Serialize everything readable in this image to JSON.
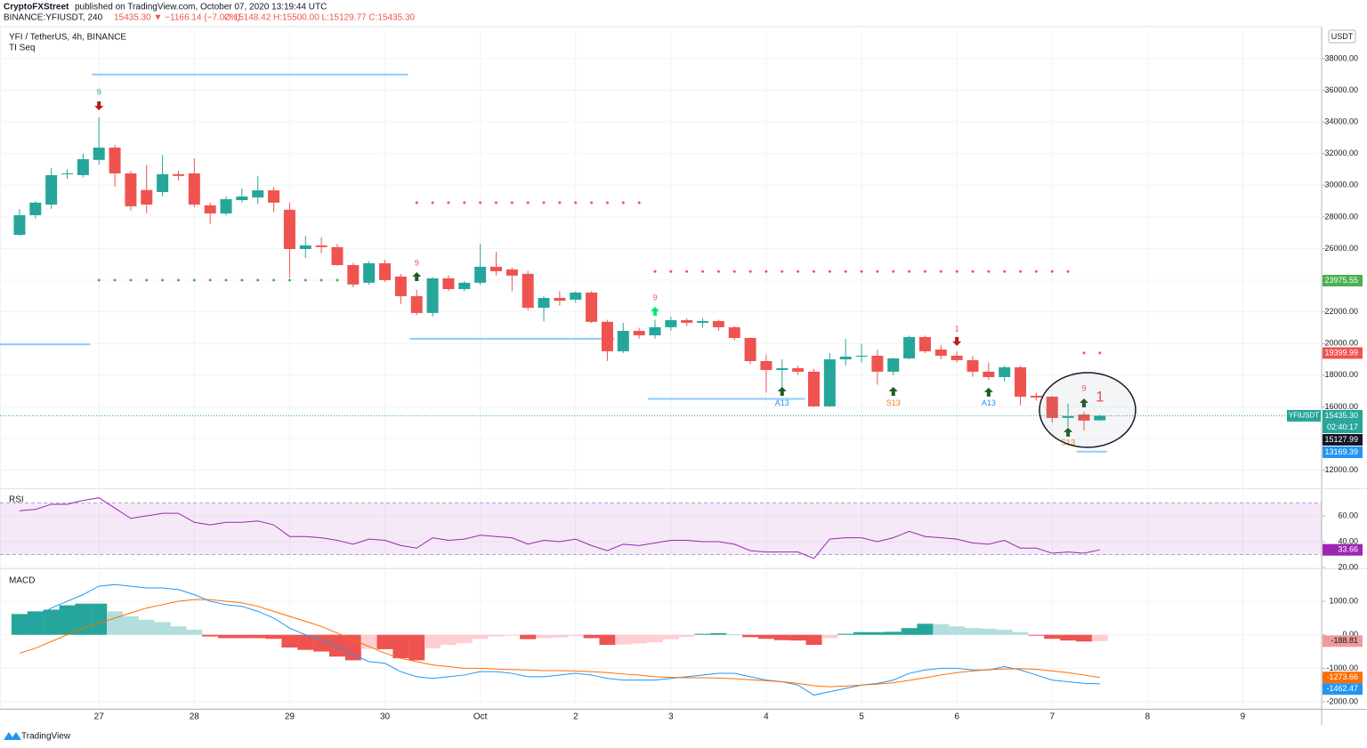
{
  "chart_data": [
    {
      "type": "candlestick",
      "author": "CryptoFXStreet",
      "published": "published on TradingView.com, October 07, 2020 13:19:44 UTC",
      "symbol": "BINANCE:YFIUSDT, 240",
      "change": "15435.30 ▼ −1166.14 (−7.02%)",
      "ohlc_text": "O:15148.42 H:15500.00 L:15129.77 C:15435.30",
      "title": "YFI / TetherUS, 4h, BINANCE",
      "indicator": "TI Seq",
      "currency": "USDT",
      "footer": "TradingView",
      "up_color": "#26a69a",
      "down_color": "#ef5350",
      "open": [
        26870,
        28110,
        28780,
        30700,
        30640,
        31600,
        32380,
        30750,
        29700,
        29570,
        30700,
        30750,
        28730,
        28220,
        29060,
        29230,
        29680,
        28450,
        25970,
        26200,
        26090,
        24960,
        23840,
        25070,
        24230,
        22990,
        21930,
        24120,
        23440,
        23840,
        24850,
        24680,
        24400,
        22260,
        22880,
        22770,
        23220,
        21370,
        19510,
        20800,
        20520,
        21030,
        21480,
        21310,
        21420,
        21030,
        20350,
        18890,
        18330,
        18440,
        18220,
        16030,
        19000,
        19170,
        19230,
        18220,
        19060,
        20410,
        19620,
        19230,
        18950,
        18220,
        17880,
        18500,
        16700,
        16640,
        15300,
        15520,
        15148.42
      ],
      "high": [
        28500,
        29000,
        31100,
        31000,
        32000,
        34290,
        32550,
        30900,
        31300,
        31900,
        30900,
        31700,
        28900,
        29300,
        29800,
        30600,
        29900,
        28900,
        26800,
        26700,
        26300,
        25100,
        25200,
        25300,
        24400,
        23400,
        24200,
        24300,
        23950,
        26300,
        25800,
        24800,
        24600,
        23000,
        23300,
        23300,
        23300,
        21500,
        21300,
        21000,
        21500,
        21700,
        21600,
        21600,
        21500,
        21100,
        20400,
        19300,
        19000,
        18600,
        18400,
        19400,
        20300,
        20000,
        19600,
        19100,
        20500,
        20500,
        19900,
        19500,
        19200,
        18800,
        18600,
        18600,
        16900,
        16700,
        16200,
        15700,
        15500
      ],
      "low": [
        26800,
        27900,
        28500,
        30400,
        30500,
        31300,
        29900,
        28400,
        28230,
        29300,
        30300,
        28600,
        27550,
        28100,
        28900,
        28800,
        28300,
        24150,
        25400,
        25700,
        24900,
        23550,
        23700,
        23900,
        22500,
        21800,
        21700,
        23300,
        23300,
        23700,
        24300,
        23300,
        22100,
        21400,
        22400,
        22600,
        21300,
        18900,
        19400,
        20300,
        20300,
        20800,
        21100,
        21000,
        20800,
        20200,
        18700,
        16900,
        17100,
        18000,
        16000,
        16000,
        18600,
        18800,
        17400,
        18000,
        19000,
        19400,
        19000,
        18800,
        17900,
        17700,
        17600,
        16100,
        16400,
        15000,
        14700,
        14500,
        15129.77
      ],
      "close": [
        28110,
        28900,
        30640,
        30750,
        31650,
        32380,
        30750,
        28670,
        28780,
        30700,
        30590,
        28780,
        28220,
        29120,
        29290,
        29680,
        28900,
        25970,
        26200,
        26090,
        24960,
        23730,
        25070,
        24010,
        22990,
        21930,
        24120,
        23440,
        23840,
        24850,
        24570,
        24290,
        22260,
        22880,
        22710,
        23220,
        21370,
        19510,
        20800,
        20520,
        21030,
        21480,
        21310,
        21420,
        21030,
        20350,
        18890,
        18330,
        18440,
        18220,
        16030,
        19000,
        19170,
        19230,
        18220,
        19060,
        20410,
        19510,
        19230,
        18950,
        18220,
        17880,
        18500,
        16640,
        16590,
        15300,
        15410,
        15130,
        15435.3
      ],
      "xlim": [
        -1.23,
        81.96
      ],
      "xticks": [
        {
          "value": 5,
          "label": "27"
        },
        {
          "value": 11,
          "label": "28"
        },
        {
          "value": 17,
          "label": "29"
        },
        {
          "value": 23,
          "label": "30"
        },
        {
          "value": 29,
          "label": "Oct"
        },
        {
          "value": 35,
          "label": "2"
        },
        {
          "value": 41,
          "label": "3"
        },
        {
          "value": 47,
          "label": "4"
        },
        {
          "value": 53,
          "label": "5"
        },
        {
          "value": 59,
          "label": "6"
        },
        {
          "value": 65,
          "label": "7"
        },
        {
          "value": 71,
          "label": "8"
        },
        {
          "value": 77,
          "label": "9"
        }
      ],
      "ylim": [
        10910,
        39850
      ],
      "yticks": [
        {
          "value": 12000,
          "label": "12000.00"
        },
        {
          "value": 14000,
          "label": "14000.00"
        },
        {
          "value": 16000,
          "label": "16000.00"
        },
        {
          "value": 18000,
          "label": "18000.00"
        },
        {
          "value": 20000,
          "label": "20000.00"
        },
        {
          "value": 22000,
          "label": "22000.00"
        },
        {
          "value": 24000,
          "label": "24000.00"
        },
        {
          "value": 26000,
          "label": "26000.00"
        },
        {
          "value": 28000,
          "label": "28000.00"
        },
        {
          "value": 30000,
          "label": "30000.00"
        },
        {
          "value": 32000,
          "label": "32000.00"
        },
        {
          "value": 34000,
          "label": "34000.00"
        },
        {
          "value": 36000,
          "label": "36000.00"
        },
        {
          "value": 38000,
          "label": "38000.00"
        }
      ],
      "grid": true,
      "price_labels": [
        {
          "value": 23975.55,
          "color": "#4caf50"
        },
        {
          "value": 19399.99,
          "color": "#ef5350"
        },
        {
          "value": 15435.3,
          "label": "15435.30",
          "color": "#26a69a",
          "tag": "YFIUSDT",
          "sub": "02:40:17"
        },
        {
          "value": 15127.99,
          "color": "#131722"
        },
        {
          "value": 13169.39,
          "color": "#2196f3"
        }
      ],
      "levels": [
        {
          "price": 24000,
          "from": 5,
          "to": 20,
          "style": "dots",
          "color": "#4caf50"
        },
        {
          "price": 28900,
          "from": 25,
          "to": 39,
          "style": "dots",
          "color": "#ef5350"
        },
        {
          "price": 24550,
          "from": 40,
          "to": 66,
          "style": "dots",
          "color": "#ef5350"
        },
        {
          "price": 19400,
          "from": 67,
          "to": 68,
          "style": "dots",
          "color": "#ef5350"
        },
        {
          "price": 37000,
          "from": 5,
          "to": 24,
          "style": "line",
          "color": "#90caf9"
        },
        {
          "price": 19950,
          "from": -1,
          "to": 4,
          "style": "line",
          "color": "#90caf9"
        },
        {
          "price": 20300,
          "from": 25,
          "to": 37,
          "style": "line",
          "color": "#90caf9"
        },
        {
          "price": 16500,
          "from": 40,
          "to": 49,
          "style": "line",
          "color": "#90caf9"
        },
        {
          "price": 13169,
          "from": 67,
          "to": 68,
          "style": "line",
          "color": "#90caf9"
        }
      ],
      "annotations": [
        {
          "text": "9",
          "x": 5,
          "y": 35860,
          "color": "#26a69a"
        },
        {
          "text": "9",
          "x": 25,
          "y": 25070,
          "color": "#ef5350"
        },
        {
          "text": "9",
          "x": 40,
          "y": 22880,
          "color": "#ef5350"
        },
        {
          "text": "A13",
          "x": 48,
          "y": 16200,
          "color": "#2196f3"
        },
        {
          "text": "S13",
          "x": 55,
          "y": 16200,
          "color": "#f57c00"
        },
        {
          "text": "1",
          "x": 59,
          "y": 20910,
          "color": "#ef5350"
        },
        {
          "text": "A13",
          "x": 61,
          "y": 16200,
          "color": "#2196f3"
        },
        {
          "text": "9",
          "x": 67,
          "y": 17150,
          "color": "#ef5350"
        },
        {
          "text": "S13",
          "x": 66,
          "y": 13720,
          "color": "#f57c00"
        },
        {
          "text": "1",
          "x": 68,
          "y": 16590,
          "color": "#ef5350",
          "size": "large"
        }
      ],
      "arrows": [
        {
          "x": 5,
          "y": 35020,
          "dir": "down",
          "color": "#b71c1c"
        },
        {
          "x": 25,
          "y": 24230,
          "dir": "up",
          "color": "#1b5e20"
        },
        {
          "x": 40,
          "y": 22040,
          "dir": "up",
          "color": "#00e676"
        },
        {
          "x": 48,
          "y": 16980,
          "dir": "up",
          "color": "#1b5e20"
        },
        {
          "x": 55,
          "y": 16980,
          "dir": "up",
          "color": "#1b5e20"
        },
        {
          "x": 59,
          "y": 20130,
          "dir": "down",
          "color": "#b71c1c"
        },
        {
          "x": 61,
          "y": 16930,
          "dir": "up",
          "color": "#1b5e20"
        },
        {
          "x": 67,
          "y": 16250,
          "dir": "up",
          "color": "#1b5e20"
        },
        {
          "x": 66,
          "y": 14400,
          "dir": "up",
          "color": "#1b5e20"
        }
      ]
    },
    {
      "type": "line",
      "title": "RSI",
      "color": "#9c27b0",
      "values": [
        64,
        65,
        69,
        69,
        72,
        74,
        66,
        58,
        60,
        62,
        62,
        55,
        53,
        55,
        55,
        56,
        53,
        44,
        44,
        43,
        41,
        38,
        42,
        41,
        37,
        35,
        43,
        41,
        42,
        45,
        44,
        43,
        38,
        41,
        40,
        42,
        37,
        33,
        38,
        37,
        39,
        41,
        41,
        40,
        40,
        38,
        33,
        32,
        32,
        32,
        27,
        42,
        43,
        43,
        40,
        43,
        48,
        44,
        43,
        42,
        39,
        38,
        41,
        35,
        35,
        31,
        32,
        31,
        33.66
      ],
      "value_label": "33.66",
      "band": [
        30,
        70
      ],
      "ylim": [
        20,
        80
      ],
      "yticks": [
        {
          "value": 20,
          "label": "20.00"
        },
        {
          "value": 40,
          "label": "40.00"
        },
        {
          "value": 60,
          "label": "60.00"
        }
      ]
    },
    {
      "type": "macd",
      "title": "MACD",
      "histogram": [
        620,
        700,
        750,
        880,
        930,
        930,
        700,
        550,
        450,
        380,
        250,
        150,
        -50,
        -100,
        -100,
        -100,
        -120,
        -380,
        -450,
        -500,
        -650,
        -760,
        -420,
        -430,
        -700,
        -760,
        -400,
        -300,
        -250,
        -120,
        -50,
        -20,
        -130,
        -100,
        -80,
        -40,
        -100,
        -300,
        -290,
        -260,
        -220,
        -130,
        -60,
        30,
        50,
        20,
        -70,
        -120,
        -160,
        -170,
        -300,
        -100,
        30,
        80,
        80,
        90,
        200,
        330,
        320,
        250,
        200,
        180,
        150,
        80,
        -10,
        -120,
        -170,
        -200,
        -188.81
      ],
      "series": [
        {
          "name": "MACD",
          "color": "#2196f3",
          "values": [
            300,
            500,
            800,
            1000,
            1200,
            1450,
            1500,
            1450,
            1400,
            1400,
            1350,
            1200,
            1000,
            900,
            850,
            700,
            500,
            200,
            0,
            -150,
            -350,
            -600,
            -800,
            -850,
            -1100,
            -1250,
            -1300,
            -1250,
            -1200,
            -1100,
            -1100,
            -1150,
            -1250,
            -1250,
            -1200,
            -1150,
            -1200,
            -1300,
            -1350,
            -1350,
            -1350,
            -1300,
            -1250,
            -1200,
            -1150,
            -1150,
            -1250,
            -1350,
            -1400,
            -1500,
            -1800,
            -1700,
            -1600,
            -1500,
            -1450,
            -1350,
            -1150,
            -1050,
            -1000,
            -1000,
            -1050,
            -1050,
            -950,
            -1050,
            -1200,
            -1350,
            -1400,
            -1450,
            -1462.47
          ]
        },
        {
          "name": "Signal",
          "color": "#ff6d00",
          "values": [
            -550,
            -400,
            -200,
            0,
            200,
            350,
            500,
            650,
            800,
            900,
            1000,
            1050,
            1050,
            1000,
            950,
            850,
            700,
            550,
            400,
            250,
            50,
            -150,
            -350,
            -550,
            -700,
            -800,
            -900,
            -950,
            -1000,
            -1000,
            -1020,
            -1040,
            -1050,
            -1070,
            -1070,
            -1080,
            -1100,
            -1130,
            -1170,
            -1200,
            -1250,
            -1270,
            -1280,
            -1280,
            -1290,
            -1310,
            -1340,
            -1370,
            -1400,
            -1450,
            -1520,
            -1550,
            -1530,
            -1500,
            -1470,
            -1430,
            -1360,
            -1280,
            -1200,
            -1130,
            -1080,
            -1040,
            -1020,
            -1010,
            -1030,
            -1080,
            -1130,
            -1200,
            -1273.66
          ]
        }
      ],
      "last_labels": [
        {
          "value": -188.81,
          "color": "#ef9a9a"
        },
        {
          "value": -1273.66,
          "color": "#ff6d00"
        },
        {
          "value": -1462.47,
          "color": "#2196f3"
        }
      ],
      "ylim": [
        -2210,
        1930
      ],
      "yticks": [
        {
          "value": -2000,
          "label": "-2000.00"
        },
        {
          "value": -1000,
          "label": "-1000.00"
        },
        {
          "value": 0,
          "label": "0.00"
        },
        {
          "value": 1000,
          "label": "1000.00"
        }
      ]
    }
  ]
}
